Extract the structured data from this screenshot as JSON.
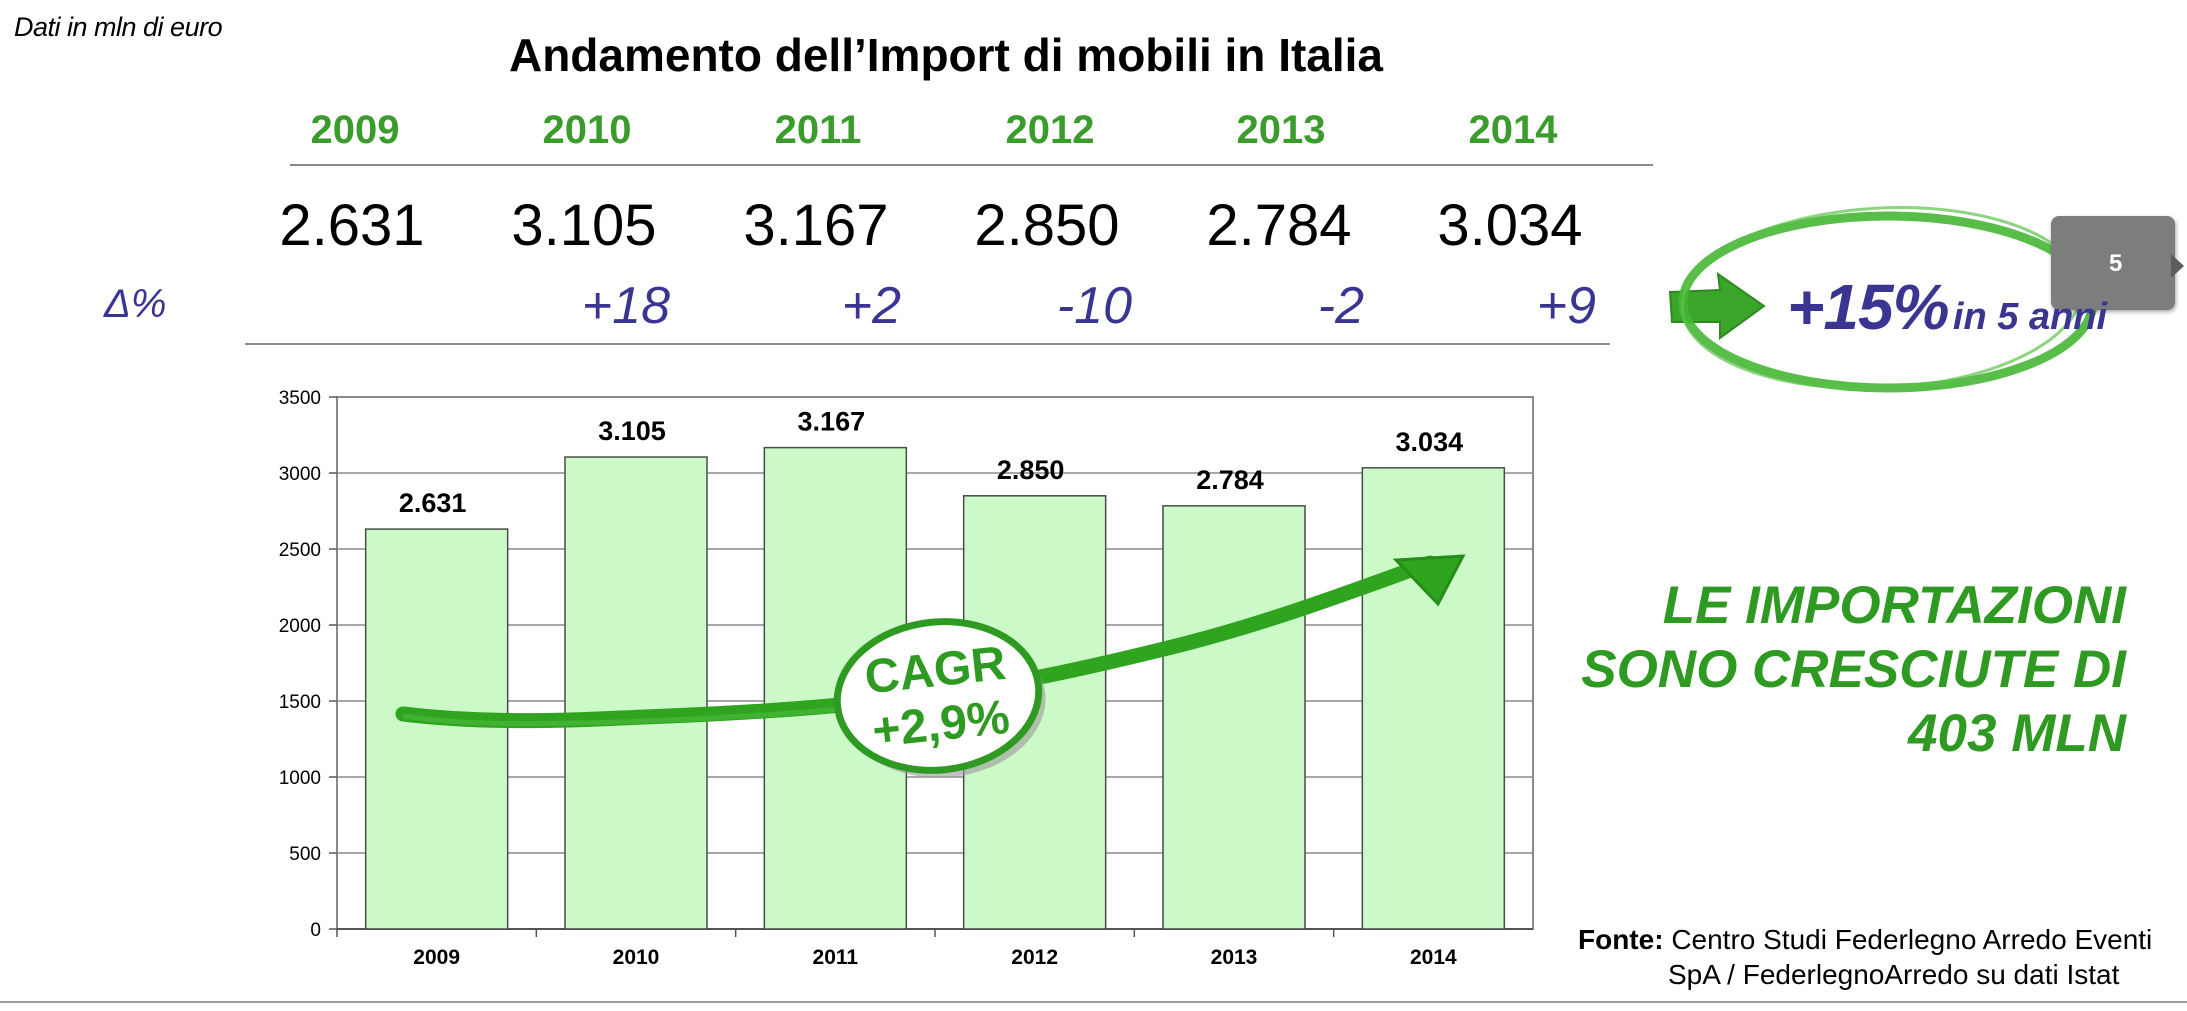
{
  "header": {
    "unit_note": "Dati in mln di euro",
    "title": "Andamento dell’Import di mobili in Italia"
  },
  "summary_table": {
    "years": [
      "2009",
      "2010",
      "2011",
      "2012",
      "2013",
      "2014"
    ],
    "values": [
      "2.631",
      "3.105",
      "3.167",
      "2.850",
      "2.784",
      "3.034"
    ],
    "delta_label": "Δ%",
    "deltas": [
      "",
      "+18",
      "+2",
      "-10",
      "-2",
      "+9"
    ]
  },
  "growth_badge": {
    "value": "+15%",
    "period": "in 5 anni"
  },
  "page_tab": "5",
  "headline": [
    "LE IMPORTAZIONI",
    "SONO CRESCIUTE DI",
    "403 MLN"
  ],
  "source": {
    "label": "Fonte:",
    "line1": "Centro Studi Federlegno Arredo Eventi",
    "line2": "SpA / FederlegnoArredo su dati Istat"
  },
  "colors": {
    "accent_green": "#2e9a21",
    "year_green": "#3a9c2b",
    "delta_blue": "#3b3592",
    "bar_fill": "#ccf9c8",
    "bar_stroke": "#4a4a4a"
  },
  "chart_data": {
    "type": "bar",
    "categories": [
      "2009",
      "2010",
      "2011",
      "2012",
      "2013",
      "2014"
    ],
    "values": [
      2631,
      3105,
      3167,
      2850,
      2784,
      3034
    ],
    "data_labels": [
      "2.631",
      "3.105",
      "3.167",
      "2.850",
      "2.784",
      "3.034"
    ],
    "ylim": [
      0,
      3500
    ],
    "yticks": [
      0,
      500,
      1000,
      1500,
      2000,
      2500,
      3000,
      3500
    ],
    "grid": true,
    "legend": "none",
    "annotation": {
      "label_line1": "CAGR",
      "label_line2": "+2,9%",
      "trend_arrow_icon": "green-trend-arrow-icon"
    }
  }
}
